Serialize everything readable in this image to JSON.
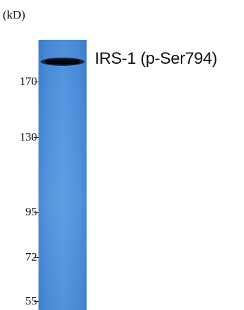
{
  "unit_label": "(kD)",
  "target_label": "IRS-1 (p-Ser794)",
  "markers": [
    {
      "label": "170"
    },
    {
      "label": "130"
    },
    {
      "label": "95"
    },
    {
      "label": "72"
    },
    {
      "label": "55"
    }
  ],
  "colors": {
    "lane": "#5598e0",
    "band": "#05070a"
  }
}
